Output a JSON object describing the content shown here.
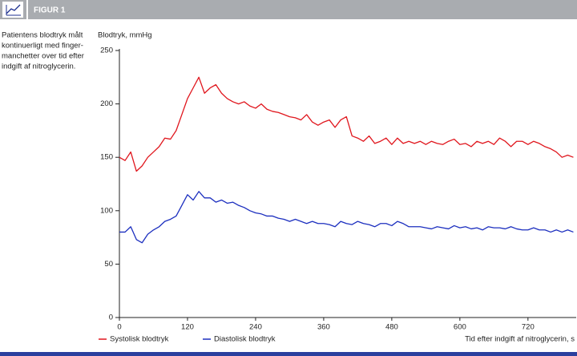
{
  "chart_data": {
    "type": "line",
    "title": "FIGUR 1",
    "caption": [
      "Patientens blodtryk målt",
      "kontinuerligt med finger-",
      "manchetter over tid efter",
      "indgift af nitroglycerin."
    ],
    "y_label": "Blodtryk, mmHg",
    "x_label": "Tid efter indgift af nitroglycerin, s",
    "x": [
      0,
      10,
      20,
      30,
      40,
      50,
      60,
      70,
      80,
      90,
      100,
      110,
      120,
      130,
      140,
      150,
      160,
      170,
      180,
      190,
      200,
      210,
      220,
      230,
      240,
      250,
      260,
      270,
      280,
      290,
      300,
      310,
      320,
      330,
      340,
      350,
      360,
      370,
      380,
      390,
      400,
      410,
      420,
      430,
      440,
      450,
      460,
      470,
      480,
      490,
      500,
      510,
      520,
      530,
      540,
      550,
      560,
      570,
      580,
      590,
      600,
      610,
      620,
      630,
      640,
      650,
      660,
      670,
      680,
      690,
      700,
      710,
      720,
      730,
      740,
      750,
      760,
      770,
      780,
      790,
      800
    ],
    "series": [
      {
        "name": "Systolisk blodtryk",
        "color": "#e0161d",
        "values": [
          150,
          147,
          155,
          137,
          142,
          150,
          155,
          160,
          168,
          167,
          175,
          190,
          205,
          215,
          225,
          210,
          215,
          218,
          210,
          205,
          202,
          200,
          202,
          198,
          196,
          200,
          195,
          193,
          192,
          190,
          188,
          187,
          185,
          190,
          183,
          180,
          183,
          185,
          178,
          185,
          188,
          170,
          168,
          165,
          170,
          163,
          165,
          168,
          162,
          168,
          163,
          165,
          163,
          165,
          162,
          165,
          163,
          162,
          165,
          167,
          162,
          163,
          160,
          165,
          163,
          165,
          162,
          168,
          165,
          160,
          165,
          165,
          162,
          165,
          163,
          160,
          158,
          155,
          150,
          152,
          150
        ]
      },
      {
        "name": "Diastolisk blodtryk",
        "color": "#1c2fbf",
        "values": [
          80,
          80,
          85,
          73,
          70,
          78,
          82,
          85,
          90,
          92,
          95,
          105,
          115,
          110,
          118,
          112,
          112,
          108,
          110,
          107,
          108,
          105,
          103,
          100,
          98,
          97,
          95,
          95,
          93,
          92,
          90,
          92,
          90,
          88,
          90,
          88,
          88,
          87,
          85,
          90,
          88,
          87,
          90,
          88,
          87,
          85,
          88,
          88,
          86,
          90,
          88,
          85,
          85,
          85,
          84,
          83,
          85,
          84,
          83,
          86,
          84,
          85,
          83,
          84,
          82,
          85,
          84,
          84,
          83,
          85,
          83,
          82,
          82,
          84,
          82,
          82,
          80,
          82,
          80,
          82,
          80
        ]
      }
    ],
    "xlim": [
      0,
      805
    ],
    "ylim": [
      0,
      250
    ],
    "xticks": [
      0,
      120,
      240,
      360,
      480,
      600,
      720
    ],
    "yticks": [
      0,
      50,
      100,
      150,
      200,
      250
    ],
    "grid": false
  }
}
